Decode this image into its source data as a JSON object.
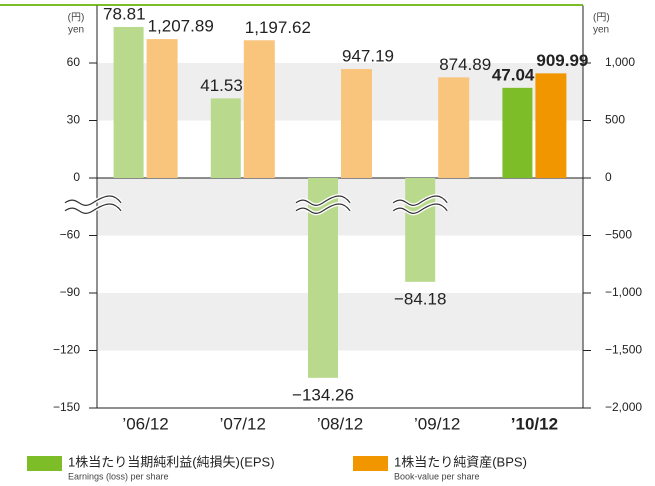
{
  "chart_data": {
    "type": "bar",
    "y_label": "(円)",
    "y_label_en": "yen",
    "y2_label": "(円)",
    "y2_label_en": "yen",
    "categories": [
      "’06/12",
      "’07/12",
      "’08/12",
      "’09/12",
      "’10/12"
    ],
    "emphasis": [
      false,
      false,
      false,
      false,
      true
    ],
    "ylim": [
      -150,
      90
    ],
    "yticks": [
      {
        "value": -150,
        "label": "−150"
      },
      {
        "value": -120,
        "label": "−120"
      },
      {
        "value": -90,
        "label": "−90"
      },
      {
        "value": -60,
        "label": "−60"
      },
      0,
      30,
      60
    ],
    "axis_break": true,
    "y2lim": [
      -2000,
      1500
    ],
    "y2ticks": [
      {
        "value": -2000,
        "label": "−2,000"
      },
      {
        "value": -1500,
        "label": "−1,500"
      },
      {
        "value": -1000,
        "label": "−1,000"
      },
      {
        "value": -500,
        "label": "−500"
      },
      0,
      500,
      {
        "value": 1000,
        "label": "1,000"
      }
    ],
    "grid": true,
    "series": [
      {
        "name": "1株当たり当期純利益(純損失)(EPS)",
        "name_en": "Earnings (loss) per share",
        "color": "#7cbd28",
        "colors": [
          "#b9da8c",
          "#b9da8c",
          "#b9da8c",
          "#b9da8c",
          "#7cbd28"
        ],
        "values": [
          78.81,
          41.53,
          -134.26,
          -84.18,
          47.04
        ],
        "value_labels": [
          "78.81",
          "41.53",
          "−134.26",
          "−84.18",
          "47.04"
        ]
      },
      {
        "name": "1株当たり純資産(BPS)",
        "name_en": "Book-value per share",
        "color": "#f29600",
        "axis": "y2",
        "colors": [
          "#f9c47c",
          "#f9c47c",
          "#f9c47c",
          "#f9c47c",
          "#f29600"
        ],
        "values": [
          1207.89,
          1197.62,
          947.19,
          874.89,
          909.99
        ],
        "value_labels": [
          "1,207.89",
          "1,197.62",
          "947.19",
          "874.89",
          "909.99"
        ]
      }
    ]
  }
}
